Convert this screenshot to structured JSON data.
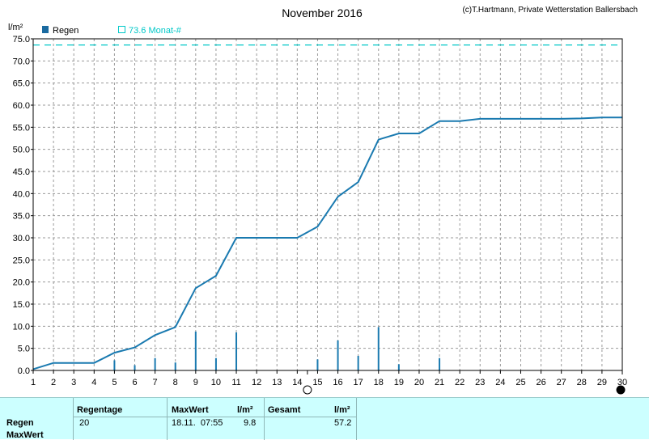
{
  "chart_data": {
    "type": "line",
    "title": "November 2016",
    "credit": "(c)T.Hartmann, Private Wetterstation Ballersbach",
    "ylabel": "l/m²",
    "ylim": [
      0,
      75
    ],
    "yticks": [
      "0.0",
      "5.0",
      "10.0",
      "15.0",
      "20.0",
      "25.0",
      "30.0",
      "35.0",
      "40.0",
      "45.0",
      "50.0",
      "55.0",
      "60.0",
      "65.0",
      "70.0",
      "75.0"
    ],
    "xlim": [
      1,
      30
    ],
    "xticks": [
      "1",
      "2",
      "3",
      "4",
      "5",
      "6",
      "7",
      "8",
      "9",
      "10",
      "11",
      "12",
      "13",
      "14",
      "15",
      "16",
      "17",
      "18",
      "19",
      "20",
      "21",
      "22",
      "23",
      "24",
      "25",
      "26",
      "27",
      "28",
      "29",
      "30"
    ],
    "grid": true,
    "legend": [
      {
        "label": "Regen",
        "color": "#1a6aa0",
        "marker": "filled-square"
      },
      {
        "label": "73.6 Monat-#",
        "color": "#00c8c8",
        "marker": "open-square"
      }
    ],
    "reference_line": {
      "value": 73.6,
      "color": "#00c8c8",
      "style": "dashed"
    },
    "series": [
      {
        "name": "Regen",
        "kind": "cumulative",
        "color": "#1a7ab0",
        "x": [
          1,
          2,
          3,
          4,
          5,
          6,
          7,
          8,
          9,
          10,
          11,
          12,
          13,
          14,
          15,
          16,
          17,
          18,
          19,
          20,
          21,
          22,
          23,
          24,
          25,
          26,
          27,
          28,
          29,
          30
        ],
        "y": [
          0.3,
          1.7,
          1.7,
          1.7,
          4.0,
          5.2,
          8.0,
          9.8,
          18.6,
          21.4,
          30.0,
          30.0,
          30.0,
          30.0,
          32.5,
          39.3,
          42.6,
          52.2,
          53.6,
          53.6,
          56.4,
          56.4,
          56.9,
          56.9,
          56.9,
          56.9,
          56.9,
          57.0,
          57.2,
          57.2
        ]
      },
      {
        "name": "Regen",
        "kind": "daily-bars",
        "color": "#1a7ab0",
        "x": [
          5,
          6,
          7,
          8,
          9,
          10,
          11,
          15,
          16,
          17,
          18,
          19,
          21
        ],
        "y": [
          2.3,
          1.2,
          2.8,
          1.8,
          8.8,
          2.8,
          8.6,
          2.5,
          6.8,
          3.3,
          9.8,
          1.4,
          2.8
        ]
      }
    ],
    "markers": [
      {
        "x": 14.5,
        "symbol": "open-circle"
      },
      {
        "x": 30,
        "symbol": "filled-circle"
      }
    ]
  },
  "panel": {
    "row_labels": [
      "Regen",
      "MaxWert"
    ],
    "headers": {
      "regentage": "Regentage",
      "maxwert": "MaxWert",
      "unit1": "l/m²",
      "gesamt": "Gesamt",
      "unit2": "l/m²"
    },
    "values": {
      "regentage": "20",
      "maxwert_time": "18.11.  07:55",
      "maxwert_value": "9.8",
      "gesamt": "57.2"
    }
  }
}
